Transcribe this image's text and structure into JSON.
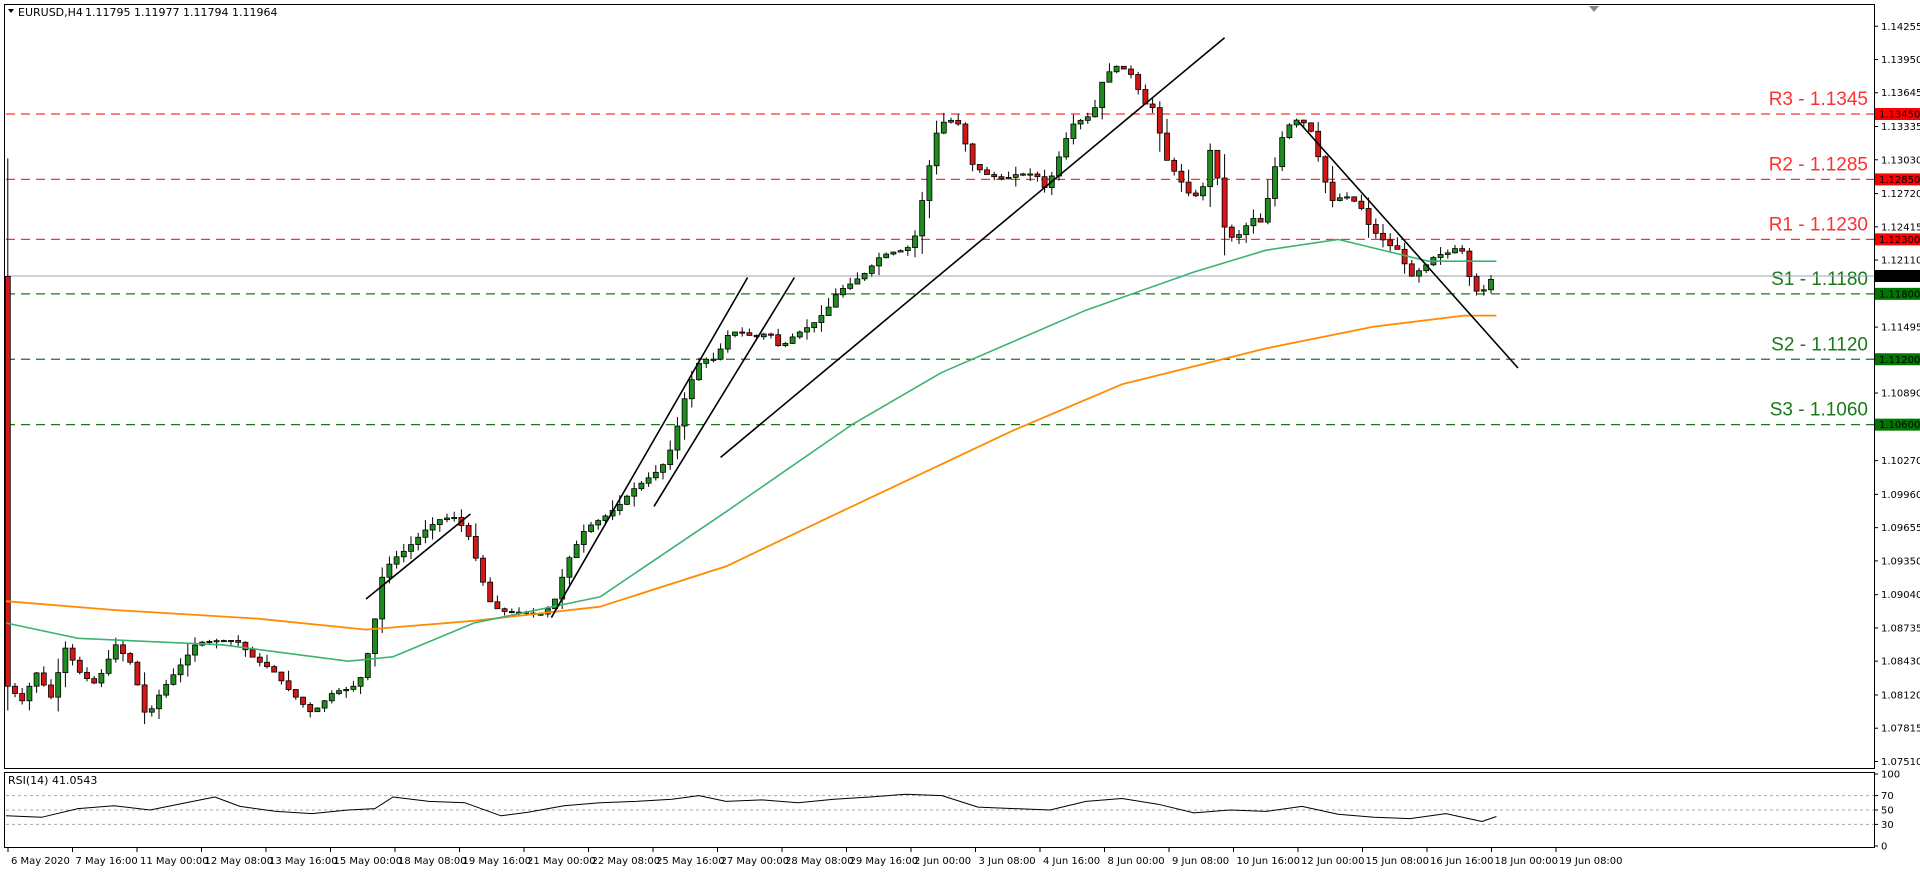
{
  "chart_data": {
    "type": "candlestick",
    "symbol": "EURUSD,H4",
    "ohlc_readout": "1.11795 1.11977 1.11794 1.11964",
    "price_axis_range": [
      1.0745,
      1.1445
    ],
    "price_ticks": [
      "1.14255",
      "1.13950",
      "1.13645",
      "1.13335",
      "1.13030",
      "1.12720",
      "1.12415",
      "1.12110",
      "1.11495",
      "1.11190",
      "1.10890",
      "1.10580",
      "1.10270",
      "1.09960",
      "1.09655",
      "1.09350",
      "1.09040",
      "1.08735",
      "1.08430",
      "1.08120",
      "1.07815",
      "1.07510"
    ],
    "time_ticks": [
      "6 May 2020",
      "7 May 16:00",
      "11 May 00:00",
      "12 May 08:00",
      "13 May 16:00",
      "15 May 00:00",
      "18 May 08:00",
      "19 May 16:00",
      "21 May 00:00",
      "22 May 08:00",
      "25 May 16:00",
      "27 May 00:00",
      "28 May 08:00",
      "29 May 16:00",
      "2 Jun 00:00",
      "3 Jun 08:00",
      "4 Jun 16:00",
      "8 Jun 00:00",
      "9 Jun 08:00",
      "10 Jun 16:00",
      "12 Jun 00:00",
      "15 Jun 08:00",
      "16 Jun 16:00",
      "18 Jun 00:00",
      "19 Jun 08:00"
    ],
    "current_price": {
      "label": "1.11964",
      "value": 1.11964,
      "color": "#000000"
    },
    "levels": [
      {
        "name": "R3 - 1.1345",
        "value": 1.1345,
        "box": "1.13450",
        "color": "#ff3030",
        "box_color": "#ff0000",
        "kind": "resistance"
      },
      {
        "name": "R2 - 1.1285",
        "value": 1.1285,
        "box": "1.12850",
        "color": "#ff3030",
        "box_color": "#ff0000",
        "kind": "resistance"
      },
      {
        "name": "R1 - 1.1230",
        "value": 1.123,
        "box": "1.12300",
        "color": "#ff3030",
        "box_color": "#ff0000",
        "kind": "resistance"
      },
      {
        "name": "S1 - 1.1180",
        "value": 1.118,
        "box": "1.11800",
        "color": "#1a7a1a",
        "box_color": "#007700",
        "kind": "support"
      },
      {
        "name": "S2 - 1.1120",
        "value": 1.112,
        "box": "1.11200",
        "color": "#1a7a1a",
        "box_color": "#007700",
        "kind": "support"
      },
      {
        "name": "S3 - 1.1060",
        "value": 1.106,
        "box": "1.10600",
        "color": "#1a7a1a",
        "box_color": "#007700",
        "kind": "support"
      }
    ],
    "price_path": [
      [
        0,
        1.0825
      ],
      [
        12,
        1.0805
      ],
      [
        18,
        1.0835
      ],
      [
        27,
        1.081
      ],
      [
        35,
        1.0855
      ],
      [
        44,
        1.083
      ],
      [
        52,
        1.0822
      ],
      [
        63,
        1.0858
      ],
      [
        72,
        1.084
      ],
      [
        80,
        1.079
      ],
      [
        88,
        1.0815
      ],
      [
        97,
        1.0835
      ],
      [
        108,
        1.086
      ],
      [
        120,
        1.0862
      ],
      [
        130,
        1.0862
      ],
      [
        140,
        1.0845
      ],
      [
        150,
        1.0835
      ],
      [
        160,
        1.0815
      ],
      [
        172,
        1.0795
      ],
      [
        184,
        1.0815
      ],
      [
        194,
        1.0818
      ],
      [
        200,
        1.083
      ],
      [
        206,
        1.087
      ],
      [
        210,
        1.0917
      ],
      [
        216,
        1.0935
      ],
      [
        224,
        1.0945
      ],
      [
        236,
        1.0965
      ],
      [
        244,
        1.0974
      ],
      [
        252,
        1.0975
      ],
      [
        260,
        1.0955
      ],
      [
        266,
        1.092
      ],
      [
        272,
        1.0893
      ],
      [
        280,
        1.0888
      ],
      [
        288,
        1.0888
      ],
      [
        298,
        1.0885
      ],
      [
        306,
        1.0895
      ],
      [
        314,
        1.0935
      ],
      [
        324,
        1.0965
      ],
      [
        334,
        1.0975
      ],
      [
        342,
        1.0985
      ],
      [
        350,
        1.1
      ],
      [
        358,
        1.101
      ],
      [
        366,
        1.102
      ],
      [
        372,
        1.104
      ],
      [
        380,
        1.109
      ],
      [
        388,
        1.112
      ],
      [
        396,
        1.112
      ],
      [
        404,
        1.1145
      ],
      [
        410,
        1.1145
      ],
      [
        418,
        1.114
      ],
      [
        426,
        1.1145
      ],
      [
        432,
        1.113
      ],
      [
        440,
        1.1142
      ],
      [
        450,
        1.1152
      ],
      [
        458,
        1.1165
      ],
      [
        464,
        1.1182
      ],
      [
        472,
        1.119
      ],
      [
        480,
        1.12
      ],
      [
        488,
        1.1215
      ],
      [
        494,
        1.1218
      ],
      [
        500,
        1.122
      ],
      [
        506,
        1.1225
      ],
      [
        514,
        1.129
      ],
      [
        520,
        1.1335
      ],
      [
        526,
        1.134
      ],
      [
        532,
        1.1335
      ],
      [
        538,
        1.13
      ],
      [
        546,
        1.129
      ],
      [
        556,
        1.1285
      ],
      [
        564,
        1.129
      ],
      [
        574,
        1.129
      ],
      [
        580,
        1.1275
      ],
      [
        588,
        1.131
      ],
      [
        594,
        1.1335
      ],
      [
        600,
        1.134
      ],
      [
        606,
        1.1345
      ],
      [
        612,
        1.138
      ],
      [
        620,
        1.139
      ],
      [
        628,
        1.138
      ],
      [
        634,
        1.1355
      ],
      [
        640,
        1.135
      ],
      [
        646,
        1.1305
      ],
      [
        652,
        1.129
      ],
      [
        660,
        1.127
      ],
      [
        666,
        1.127
      ],
      [
        672,
        1.132
      ],
      [
        680,
        1.123
      ],
      [
        688,
        1.1235
      ],
      [
        694,
        1.125
      ],
      [
        700,
        1.1245
      ],
      [
        706,
        1.129
      ],
      [
        712,
        1.133
      ],
      [
        718,
        1.134
      ],
      [
        726,
        1.1335
      ],
      [
        732,
        1.13
      ],
      [
        738,
        1.1265
      ],
      [
        746,
        1.127
      ],
      [
        754,
        1.1262
      ],
      [
        760,
        1.124
      ],
      [
        770,
        1.1225
      ],
      [
        776,
        1.122
      ],
      [
        782,
        1.1195
      ],
      [
        790,
        1.1205
      ],
      [
        796,
        1.1215
      ],
      [
        804,
        1.1218
      ],
      [
        810,
        1.1225
      ],
      [
        816,
        1.119
      ],
      [
        820,
        1.118
      ],
      [
        824,
        1.1185
      ],
      [
        828,
        1.1196
      ]
    ],
    "ema_100": [
      [
        0,
        1.0878
      ],
      [
        40,
        1.0864
      ],
      [
        120,
        1.0858
      ],
      [
        190,
        1.0843
      ],
      [
        215,
        1.0847
      ],
      [
        260,
        1.0878
      ],
      [
        330,
        1.0902
      ],
      [
        400,
        1.098
      ],
      [
        470,
        1.106
      ],
      [
        520,
        1.1108
      ],
      [
        600,
        1.1165
      ],
      [
        660,
        1.12
      ],
      [
        700,
        1.122
      ],
      [
        740,
        1.123
      ],
      [
        790,
        1.121
      ],
      [
        828,
        1.121
      ]
    ],
    "ema_200": [
      [
        0,
        1.0898
      ],
      [
        60,
        1.089
      ],
      [
        140,
        1.0882
      ],
      [
        200,
        1.0872
      ],
      [
        260,
        1.088
      ],
      [
        330,
        1.0893
      ],
      [
        400,
        1.093
      ],
      [
        470,
        1.0985
      ],
      [
        560,
        1.1055
      ],
      [
        620,
        1.1097
      ],
      [
        700,
        1.113
      ],
      [
        760,
        1.115
      ],
      [
        810,
        1.116
      ],
      [
        828,
        1.116
      ]
    ],
    "trendlines": [
      [
        [
          200,
          1.09
        ],
        [
          258,
          1.0978
        ]
      ],
      [
        [
          303,
          1.0883
        ],
        [
          412,
          1.1195
        ]
      ],
      [
        [
          360,
          1.0985
        ],
        [
          438,
          1.1195
        ]
      ],
      [
        [
          397,
          1.103
        ],
        [
          677,
          1.1415
        ]
      ],
      [
        [
          718,
          1.1338
        ],
        [
          840,
          1.1112
        ]
      ]
    ],
    "rsi": {
      "label": "RSI(14) 41.0543",
      "range": [
        0,
        100
      ],
      "ticks": [
        "100",
        "70",
        "50",
        "30",
        "0"
      ],
      "levels": [
        70,
        50,
        30
      ],
      "values": [
        [
          0,
          42
        ],
        [
          20,
          40
        ],
        [
          40,
          52
        ],
        [
          60,
          56
        ],
        [
          80,
          50
        ],
        [
          100,
          60
        ],
        [
          116,
          68
        ],
        [
          130,
          55
        ],
        [
          150,
          48
        ],
        [
          170,
          45
        ],
        [
          190,
          50
        ],
        [
          205,
          52
        ],
        [
          215,
          68
        ],
        [
          235,
          62
        ],
        [
          255,
          60
        ],
        [
          275,
          42
        ],
        [
          290,
          47
        ],
        [
          310,
          56
        ],
        [
          330,
          60
        ],
        [
          350,
          62
        ],
        [
          370,
          65
        ],
        [
          385,
          70
        ],
        [
          400,
          62
        ],
        [
          420,
          64
        ],
        [
          440,
          60
        ],
        [
          460,
          65
        ],
        [
          480,
          68
        ],
        [
          500,
          72
        ],
        [
          520,
          70
        ],
        [
          540,
          54
        ],
        [
          560,
          52
        ],
        [
          580,
          50
        ],
        [
          600,
          62
        ],
        [
          620,
          66
        ],
        [
          640,
          58
        ],
        [
          660,
          46
        ],
        [
          680,
          50
        ],
        [
          700,
          48
        ],
        [
          720,
          55
        ],
        [
          740,
          44
        ],
        [
          760,
          40
        ],
        [
          780,
          38
        ],
        [
          800,
          45
        ],
        [
          820,
          34
        ],
        [
          828,
          41
        ]
      ]
    }
  }
}
